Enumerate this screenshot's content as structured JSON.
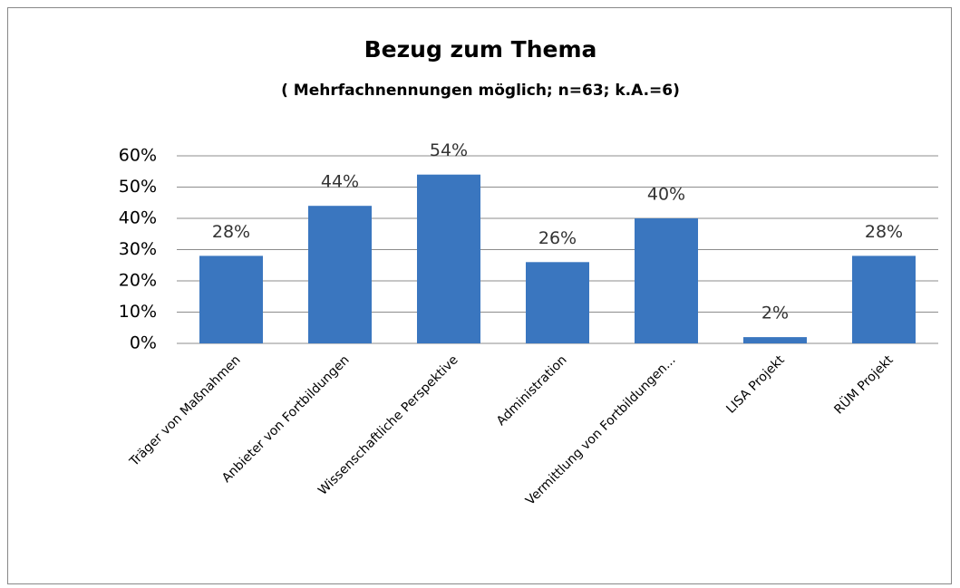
{
  "chart_data": {
    "type": "bar",
    "title": "Bezug zum Thema",
    "subtitle": "( Mehrfachnennungen möglich; n=63; k.A.=6)",
    "categories": [
      "Träger von Maßnahmen",
      "Anbieter von Fortbildungen",
      "Wissenschaftliche Perspektive",
      "Administration",
      "Vermittlung von Fortbildungen...",
      "LISA Projekt",
      "RÜM Projekt"
    ],
    "values": [
      28,
      44,
      54,
      26,
      40,
      2,
      28
    ],
    "value_labels": [
      "28%",
      "44%",
      "54%",
      "26%",
      "40%",
      "2%",
      "28%"
    ],
    "color": "#3a76bf",
    "ylim": [
      0,
      60
    ],
    "yticks": [
      {
        "value": 0,
        "label": "0%"
      },
      {
        "value": 10,
        "label": "10%"
      },
      {
        "value": 20,
        "label": "20%"
      },
      {
        "value": 30,
        "label": "30%"
      },
      {
        "value": 40,
        "label": "40%"
      },
      {
        "value": 50,
        "label": "50%"
      },
      {
        "value": 60,
        "label": "60%"
      }
    ],
    "grid": true
  }
}
